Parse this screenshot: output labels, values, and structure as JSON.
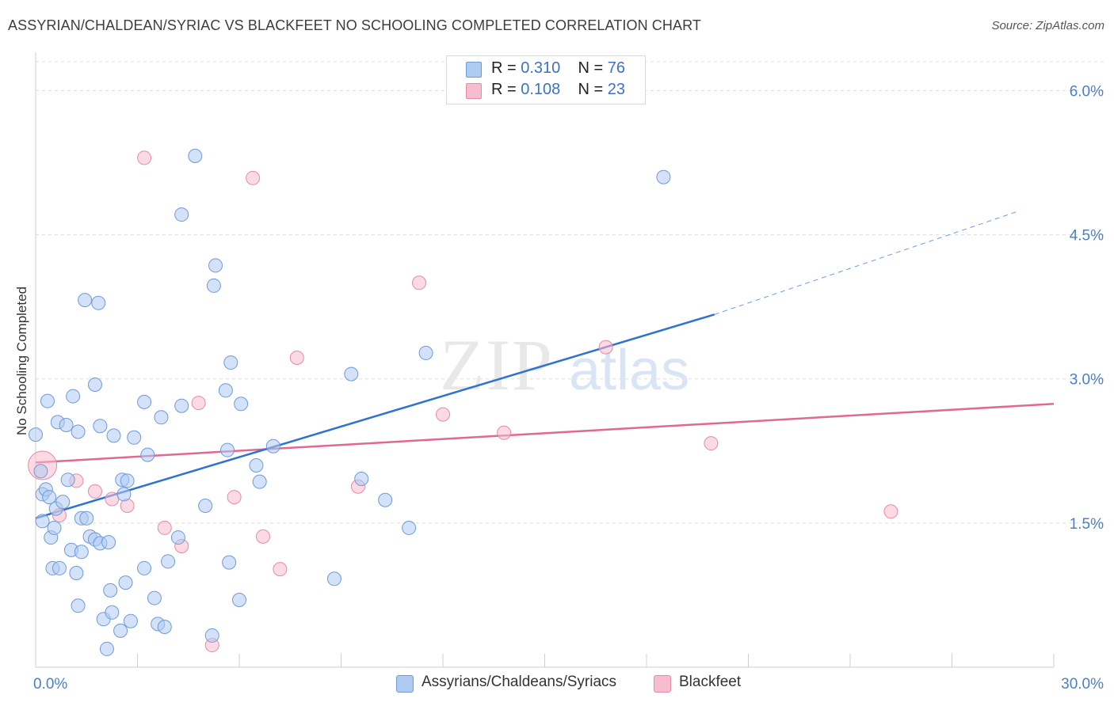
{
  "title": "ASSYRIAN/CHALDEAN/SYRIAC VS BLACKFEET NO SCHOOLING COMPLETED CORRELATION CHART",
  "source": "Source: ZipAtlas.com",
  "legend_top": [
    {
      "r_label": "R =",
      "r_value": "0.310",
      "n_label": "N =",
      "n_value": "76"
    },
    {
      "r_label": "R =",
      "r_value": "0.108",
      "n_label": "N =",
      "n_value": "23"
    }
  ],
  "watermark": {
    "zip": "ZIP",
    "atlas": "atlas"
  },
  "colors": {
    "blue_fill": "#aecbf2",
    "blue_stroke": "#6f9ad6",
    "blue_line": "#2e72d2",
    "pink_fill": "#f7bccd",
    "pink_stroke": "#e68aa8",
    "pink_line": "#e06894",
    "axis_text": "#4a7fc8",
    "grid": "#dddddd"
  },
  "chart_data": {
    "type": "scatter",
    "title": "ASSYRIAN/CHALDEAN/SYRIAC VS BLACKFEET NO SCHOOLING COMPLETED CORRELATION CHART",
    "xlabel": "",
    "ylabel": "No Schooling Completed",
    "xlim": [
      0,
      30
    ],
    "ylim": [
      0,
      6.3
    ],
    "x_tick_labels": [
      "0.0%",
      "30.0%"
    ],
    "y_ticks": [
      1.5,
      3.0,
      4.5,
      6.0
    ],
    "y_tick_labels": [
      "1.5%",
      "3.0%",
      "4.5%",
      "6.0%"
    ],
    "grid": true,
    "legend_position": "bottom",
    "series": [
      {
        "name": "Assyrians/Chaldeans/Syriacs",
        "color": "#aecbf2",
        "points": [
          [
            0.0,
            2.42
          ],
          [
            0.15,
            2.04
          ],
          [
            0.2,
            1.8
          ],
          [
            0.3,
            1.85
          ],
          [
            0.35,
            2.77
          ],
          [
            0.4,
            1.77
          ],
          [
            0.45,
            1.35
          ],
          [
            0.5,
            1.03
          ],
          [
            0.55,
            1.45
          ],
          [
            0.6,
            1.65
          ],
          [
            0.65,
            2.55
          ],
          [
            0.7,
            1.03
          ],
          [
            0.8,
            1.72
          ],
          [
            0.9,
            2.52
          ],
          [
            0.95,
            1.95
          ],
          [
            1.05,
            1.22
          ],
          [
            1.1,
            2.82
          ],
          [
            1.2,
            0.98
          ],
          [
            1.25,
            0.64
          ],
          [
            1.35,
            1.2
          ],
          [
            1.35,
            1.55
          ],
          [
            1.45,
            3.82
          ],
          [
            1.5,
            1.55
          ],
          [
            1.6,
            1.36
          ],
          [
            1.75,
            1.33
          ],
          [
            1.75,
            2.94
          ],
          [
            1.85,
            3.79
          ],
          [
            1.9,
            1.29
          ],
          [
            1.9,
            2.51
          ],
          [
            2.0,
            0.5
          ],
          [
            2.15,
            1.3
          ],
          [
            2.2,
            0.8
          ],
          [
            2.25,
            0.57
          ],
          [
            2.3,
            2.41
          ],
          [
            2.5,
            0.38
          ],
          [
            2.55,
            1.95
          ],
          [
            2.6,
            1.8
          ],
          [
            2.65,
            0.88
          ],
          [
            2.7,
            1.94
          ],
          [
            2.8,
            0.48
          ],
          [
            2.9,
            2.39
          ],
          [
            3.2,
            1.03
          ],
          [
            3.2,
            2.76
          ],
          [
            3.3,
            2.21
          ],
          [
            3.5,
            0.72
          ],
          [
            3.6,
            0.45
          ],
          [
            3.8,
            0.42
          ],
          [
            3.9,
            1.1
          ],
          [
            4.2,
            1.35
          ],
          [
            4.3,
            4.71
          ],
          [
            4.3,
            2.72
          ],
          [
            4.7,
            5.32
          ],
          [
            5.0,
            1.68
          ],
          [
            5.2,
            0.33
          ],
          [
            5.25,
            3.97
          ],
          [
            5.3,
            4.18
          ],
          [
            5.6,
            2.88
          ],
          [
            5.65,
            2.26
          ],
          [
            5.7,
            1.09
          ],
          [
            5.75,
            3.17
          ],
          [
            6.0,
            0.7
          ],
          [
            6.05,
            2.74
          ],
          [
            6.5,
            2.1
          ],
          [
            6.6,
            1.93
          ],
          [
            7.0,
            2.3
          ],
          [
            8.8,
            0.92
          ],
          [
            9.3,
            3.05
          ],
          [
            9.6,
            1.96
          ],
          [
            10.3,
            1.74
          ],
          [
            11.0,
            1.45
          ],
          [
            11.5,
            3.27
          ],
          [
            18.5,
            5.1
          ],
          [
            2.1,
            0.19
          ],
          [
            0.2,
            1.52
          ],
          [
            1.25,
            2.45
          ],
          [
            3.7,
            2.6
          ]
        ],
        "trendline": {
          "x": [
            0.0,
            20.0
          ],
          "y": [
            1.55,
            3.67
          ],
          "dashed_extension": {
            "x": [
              20.0,
              29.0
            ],
            "y": [
              3.67,
              4.75
            ]
          }
        }
      },
      {
        "name": "Blackfeet",
        "color": "#f7bccd",
        "points": [
          [
            0.2,
            2.1
          ],
          [
            0.7,
            1.58
          ],
          [
            1.2,
            1.94
          ],
          [
            1.75,
            1.83
          ],
          [
            2.25,
            1.75
          ],
          [
            2.7,
            1.68
          ],
          [
            3.2,
            5.3
          ],
          [
            3.8,
            1.45
          ],
          [
            4.3,
            1.26
          ],
          [
            4.8,
            2.75
          ],
          [
            5.2,
            0.23
          ],
          [
            5.85,
            1.77
          ],
          [
            6.4,
            5.09
          ],
          [
            6.7,
            1.36
          ],
          [
            7.2,
            1.02
          ],
          [
            7.7,
            3.22
          ],
          [
            9.5,
            1.88
          ],
          [
            11.3,
            4.0
          ],
          [
            12.0,
            2.63
          ],
          [
            13.8,
            2.44
          ],
          [
            16.8,
            3.33
          ],
          [
            19.9,
            2.33
          ],
          [
            25.2,
            1.62
          ]
        ],
        "trendline": {
          "x": [
            0.0,
            30.0
          ],
          "y": [
            2.13,
            2.74
          ]
        }
      }
    ]
  }
}
